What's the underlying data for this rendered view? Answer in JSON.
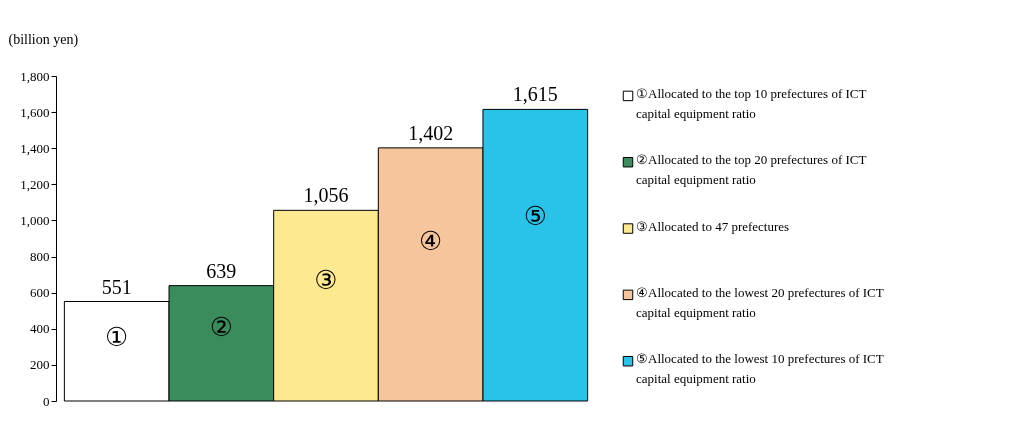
{
  "chart_data": {
    "type": "bar",
    "ylabel": "(billion yen)",
    "stacked": true,
    "categories": [
      null,
      null,
      null,
      null,
      null
    ],
    "annotations": [
      "①",
      "②",
      "③",
      "④",
      "⑤"
    ],
    "series": [
      {
        "name": "①Allocated to the top 10 prefectures of ICT capital equipment ratio",
        "color": "#ffffff",
        "values": [
          551,
          null,
          null,
          null,
          null
        ],
        "value_labels": [
          "551",
          null,
          null,
          null,
          null
        ]
      },
      {
        "name": "②Allocated to the top 20 prefectures of ICT capital equipment ratio",
        "color": "#3a8c5c",
        "values": [
          null,
          639,
          null,
          null,
          null
        ],
        "value_labels": [
          null,
          "639",
          null,
          null,
          null
        ]
      },
      {
        "name": "③Allocated to 47 prefectures",
        "color": "#fde98f",
        "values": [
          null,
          null,
          1056,
          null,
          null
        ],
        "value_labels": [
          null,
          null,
          "1,056",
          null,
          null
        ]
      },
      {
        "name": "④Allocated to the lowest 20 prefectures of ICT capital equipment ratio",
        "color": "#f7c59c",
        "values": [
          null,
          null,
          null,
          1402,
          null
        ],
        "value_labels": [
          null,
          null,
          null,
          "1,402",
          null
        ]
      },
      {
        "name": "⑤Allocated to the lowest 10 prefectures of ICT capital equipment ratio",
        "color": "#29c2e9",
        "values": [
          null,
          null,
          null,
          null,
          1615
        ],
        "value_labels": [
          null,
          null,
          null,
          null,
          "1,615"
        ]
      }
    ],
    "ylim": [
      0,
      1800
    ],
    "yticks": [
      {
        "value": 0,
        "label": "0"
      },
      {
        "value": 200,
        "label": "200"
      },
      {
        "value": 400,
        "label": "400"
      },
      {
        "value": 600,
        "label": "600"
      },
      {
        "value": 800,
        "label": "800"
      },
      {
        "value": 1000,
        "label": "1,000"
      },
      {
        "value": 1200,
        "label": "1,200"
      },
      {
        "value": 1400,
        "label": "1,400"
      },
      {
        "value": 1600,
        "label": "1,600"
      },
      {
        "value": 1800,
        "label": "1,800"
      }
    ],
    "grid": false,
    "legend": "right",
    "tick_labels": "y"
  }
}
